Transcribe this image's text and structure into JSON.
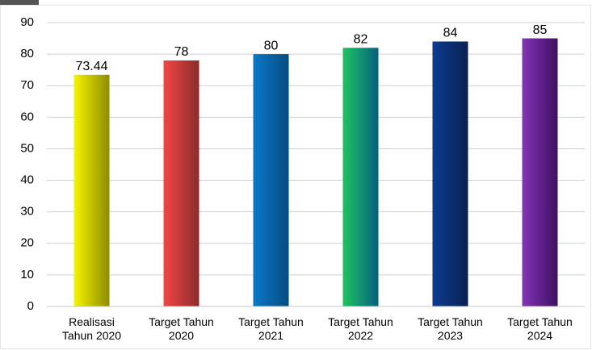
{
  "chart_data": {
    "type": "bar",
    "categories": [
      [
        "Realisasi",
        "Tahun 2020"
      ],
      [
        "Target Tahun",
        "2020"
      ],
      [
        "Target Tahun",
        "2021"
      ],
      [
        "Target Tahun",
        "2022"
      ],
      [
        "Target Tahun",
        "2023"
      ],
      [
        "Target Tahun",
        "2024"
      ]
    ],
    "values": [
      73.44,
      78,
      80,
      82,
      84,
      85
    ],
    "colors": [
      [
        "#f6f600",
        "#8c8c00"
      ],
      [
        "#f44444",
        "#8a2c2c"
      ],
      [
        "#0a78c8",
        "#064c80"
      ],
      [
        "#1cc460",
        "#066080"
      ],
      [
        "#0c3c90",
        "#0a2050"
      ],
      [
        "#8434b8",
        "#3c1060"
      ]
    ],
    "ylim": [
      0,
      90
    ],
    "yticks": [
      0,
      10,
      20,
      30,
      40,
      50,
      60,
      70,
      80,
      90
    ],
    "grid": true
  }
}
